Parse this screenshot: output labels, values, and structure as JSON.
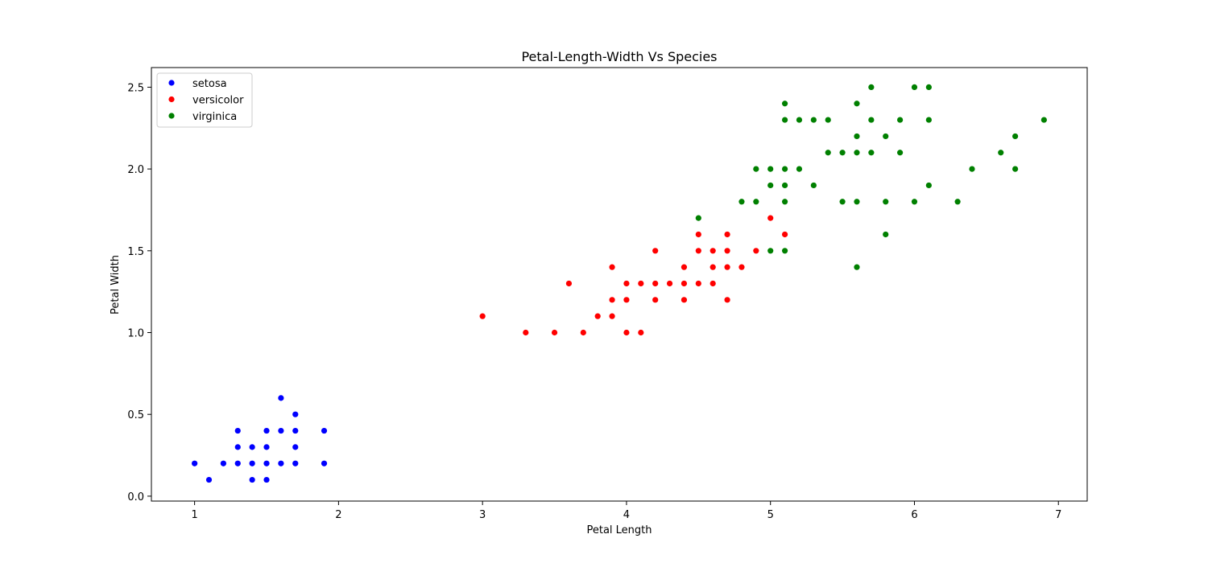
{
  "chart_data": {
    "type": "scatter",
    "title": "Petal-Length-Width Vs Species",
    "xlabel": "Petal Length",
    "ylabel": "Petal Width",
    "xlim": [
      0.7,
      7.2
    ],
    "ylim": [
      -0.03,
      2.62
    ],
    "xticks": [
      1,
      2,
      3,
      4,
      5,
      6,
      7
    ],
    "xtick_labels": [
      "1",
      "2",
      "3",
      "4",
      "5",
      "6",
      "7"
    ],
    "yticks": [
      0.0,
      0.5,
      1.0,
      1.5,
      2.0,
      2.5
    ],
    "ytick_labels": [
      "0.0",
      "0.5",
      "1.0",
      "1.5",
      "2.0",
      "2.5"
    ],
    "grid": false,
    "legend_position": "top-left",
    "series": [
      {
        "name": "setosa",
        "color": "#0000ff",
        "points": [
          [
            1.0,
            0.2
          ],
          [
            1.1,
            0.1
          ],
          [
            1.2,
            0.2
          ],
          [
            1.3,
            0.2
          ],
          [
            1.3,
            0.3
          ],
          [
            1.3,
            0.4
          ],
          [
            1.4,
            0.1
          ],
          [
            1.4,
            0.2
          ],
          [
            1.4,
            0.3
          ],
          [
            1.5,
            0.1
          ],
          [
            1.5,
            0.2
          ],
          [
            1.5,
            0.3
          ],
          [
            1.5,
            0.4
          ],
          [
            1.6,
            0.2
          ],
          [
            1.6,
            0.4
          ],
          [
            1.6,
            0.6
          ],
          [
            1.7,
            0.2
          ],
          [
            1.7,
            0.3
          ],
          [
            1.7,
            0.4
          ],
          [
            1.7,
            0.5
          ],
          [
            1.9,
            0.2
          ],
          [
            1.9,
            0.4
          ]
        ]
      },
      {
        "name": "versicolor",
        "color": "#ff0000",
        "points": [
          [
            3.0,
            1.1
          ],
          [
            3.3,
            1.0
          ],
          [
            3.5,
            1.0
          ],
          [
            3.6,
            1.3
          ],
          [
            3.7,
            1.0
          ],
          [
            3.8,
            1.1
          ],
          [
            3.9,
            1.1
          ],
          [
            3.9,
            1.2
          ],
          [
            3.9,
            1.4
          ],
          [
            4.0,
            1.0
          ],
          [
            4.0,
            1.2
          ],
          [
            4.0,
            1.3
          ],
          [
            4.1,
            1.0
          ],
          [
            4.1,
            1.3
          ],
          [
            4.2,
            1.2
          ],
          [
            4.2,
            1.3
          ],
          [
            4.2,
            1.5
          ],
          [
            4.3,
            1.3
          ],
          [
            4.4,
            1.2
          ],
          [
            4.4,
            1.3
          ],
          [
            4.4,
            1.4
          ],
          [
            4.5,
            1.3
          ],
          [
            4.5,
            1.5
          ],
          [
            4.5,
            1.6
          ],
          [
            4.6,
            1.3
          ],
          [
            4.6,
            1.4
          ],
          [
            4.6,
            1.5
          ],
          [
            4.7,
            1.2
          ],
          [
            4.7,
            1.4
          ],
          [
            4.7,
            1.5
          ],
          [
            4.7,
            1.6
          ],
          [
            4.8,
            1.4
          ],
          [
            4.9,
            1.5
          ],
          [
            5.0,
            1.7
          ],
          [
            5.1,
            1.6
          ]
        ]
      },
      {
        "name": "virginica",
        "color": "#008000",
        "points": [
          [
            4.5,
            1.7
          ],
          [
            4.8,
            1.8
          ],
          [
            4.9,
            1.8
          ],
          [
            4.9,
            2.0
          ],
          [
            5.0,
            1.5
          ],
          [
            5.0,
            1.9
          ],
          [
            5.0,
            2.0
          ],
          [
            5.1,
            1.5
          ],
          [
            5.1,
            1.8
          ],
          [
            5.1,
            1.9
          ],
          [
            5.1,
            2.0
          ],
          [
            5.1,
            2.3
          ],
          [
            5.1,
            2.4
          ],
          [
            5.2,
            2.0
          ],
          [
            5.2,
            2.3
          ],
          [
            5.3,
            1.9
          ],
          [
            5.3,
            2.3
          ],
          [
            5.4,
            2.1
          ],
          [
            5.4,
            2.3
          ],
          [
            5.5,
            1.8
          ],
          [
            5.5,
            2.1
          ],
          [
            5.6,
            1.4
          ],
          [
            5.6,
            1.8
          ],
          [
            5.6,
            2.1
          ],
          [
            5.6,
            2.2
          ],
          [
            5.6,
            2.4
          ],
          [
            5.7,
            2.1
          ],
          [
            5.7,
            2.3
          ],
          [
            5.7,
            2.5
          ],
          [
            5.8,
            1.6
          ],
          [
            5.8,
            1.8
          ],
          [
            5.8,
            2.2
          ],
          [
            5.9,
            2.1
          ],
          [
            5.9,
            2.3
          ],
          [
            6.0,
            1.8
          ],
          [
            6.0,
            2.5
          ],
          [
            6.1,
            1.9
          ],
          [
            6.1,
            2.3
          ],
          [
            6.1,
            2.5
          ],
          [
            6.3,
            1.8
          ],
          [
            6.4,
            2.0
          ],
          [
            6.6,
            2.1
          ],
          [
            6.7,
            2.0
          ],
          [
            6.7,
            2.2
          ],
          [
            6.9,
            2.3
          ]
        ]
      }
    ]
  }
}
